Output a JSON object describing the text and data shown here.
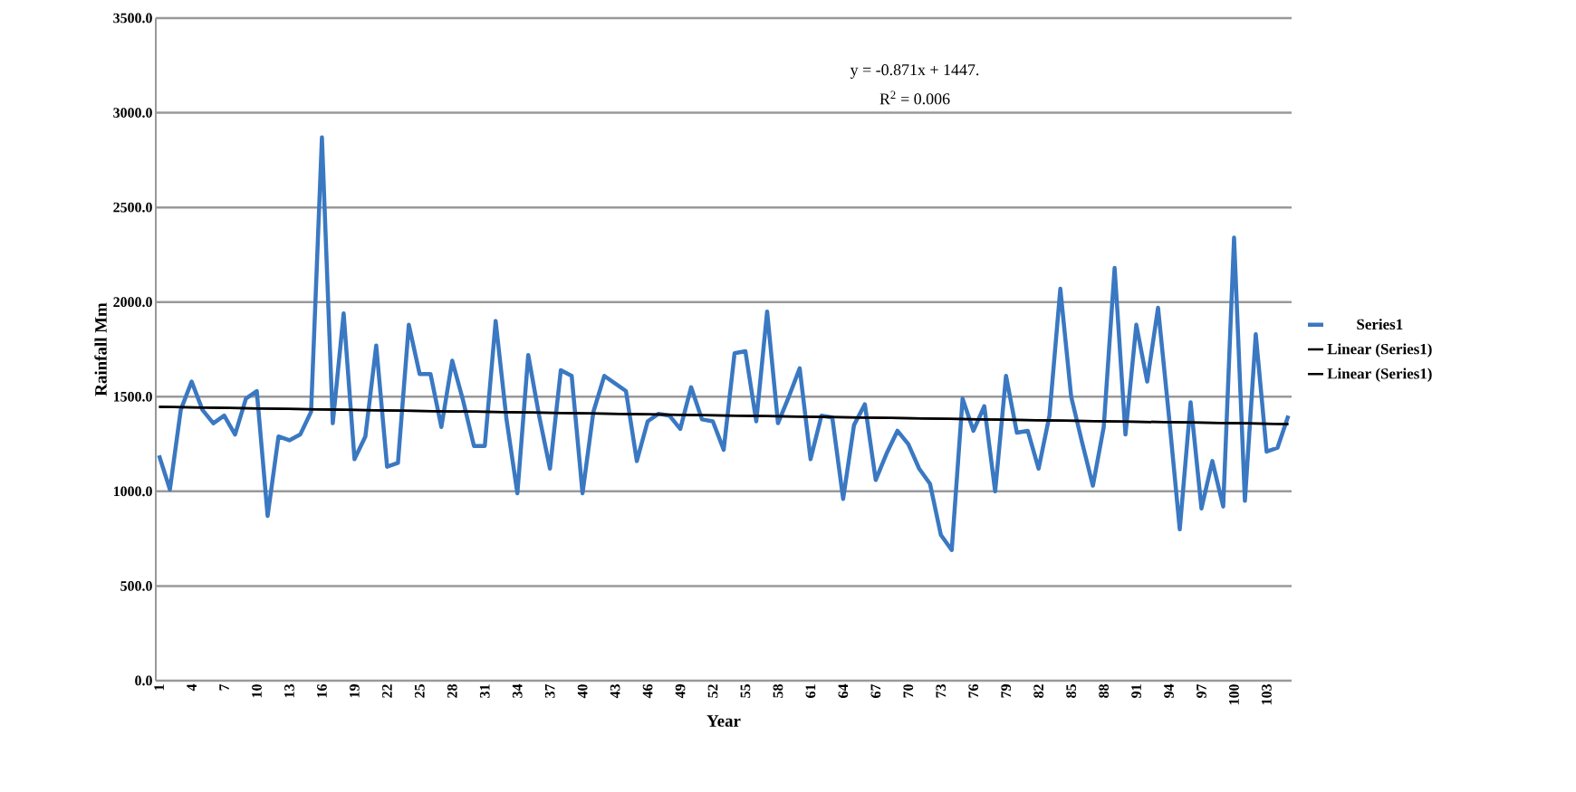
{
  "chart_data": {
    "type": "line",
    "xlabel": "Year",
    "ylabel": "Rainfall Mm",
    "categories": [
      "1",
      null,
      null,
      "4",
      null,
      null,
      "7",
      null,
      null,
      "10",
      null,
      null,
      "13",
      null,
      null,
      "16",
      null,
      null,
      "19",
      null,
      null,
      "22",
      null,
      null,
      "25",
      null,
      null,
      "28",
      null,
      null,
      "31",
      null,
      null,
      "34",
      null,
      null,
      "37",
      null,
      null,
      "40",
      null,
      null,
      "43",
      null,
      null,
      "46",
      null,
      null,
      "49",
      null,
      null,
      "52",
      null,
      null,
      "55",
      null,
      null,
      "58",
      null,
      null,
      "61",
      null,
      null,
      "64",
      null,
      null,
      "67",
      null,
      null,
      "70",
      null,
      null,
      "73",
      null,
      null,
      "76",
      null,
      null,
      "79",
      null,
      null,
      "82",
      null,
      null,
      "85",
      null,
      null,
      "88",
      null,
      null,
      "91",
      null,
      null,
      "94",
      null,
      null,
      "97",
      null,
      null,
      "100",
      null,
      null,
      "103",
      null,
      null
    ],
    "series": [
      {
        "name": "Series1",
        "color": "#3a78c2",
        "values": [
          1190,
          1010,
          1430,
          1580,
          1430,
          1360,
          1400,
          1300,
          1490,
          1530,
          870,
          1290,
          1270,
          1300,
          1420,
          2870,
          1360,
          1940,
          1170,
          1290,
          1770,
          1130,
          1150,
          1880,
          1620,
          1620,
          1340,
          1690,
          1480,
          1240,
          1240,
          1900,
          1380,
          990,
          1720,
          1400,
          1120,
          1640,
          1610,
          990,
          1420,
          1610,
          1570,
          1530,
          1160,
          1370,
          1410,
          1400,
          1330,
          1550,
          1380,
          1370,
          1220,
          1730,
          1740,
          1370,
          1950,
          1360,
          1500,
          1650,
          1170,
          1400,
          1390,
          960,
          1350,
          1460,
          1060,
          1200,
          1320,
          1250,
          1120,
          1040,
          770,
          690,
          1490,
          1320,
          1450,
          1000,
          1610,
          1310,
          1320,
          1120,
          1400,
          2070,
          1500,
          1260,
          1030,
          1340,
          2180,
          1300,
          1880,
          1580,
          1970,
          1400,
          800,
          1470,
          910,
          1160,
          920,
          2340,
          950,
          1830,
          1210,
          1230,
          1400
        ]
      },
      {
        "name": "Linear (Series1)",
        "color": "#000000",
        "values": [
          1446,
          null,
          null,
          null,
          null,
          null,
          null,
          null,
          null,
          null,
          null,
          null,
          null,
          null,
          null,
          null,
          null,
          null,
          null,
          null,
          null,
          null,
          null,
          null,
          null,
          null,
          null,
          null,
          null,
          null,
          null,
          null,
          null,
          null,
          null,
          null,
          null,
          null,
          null,
          null,
          null,
          null,
          null,
          null,
          null,
          null,
          null,
          null,
          null,
          null,
          null,
          null,
          null,
          null,
          null,
          null,
          null,
          null,
          null,
          null,
          null,
          null,
          null,
          null,
          null,
          null,
          null,
          null,
          null,
          null,
          null,
          null,
          null,
          null,
          null,
          null,
          null,
          null,
          null,
          null,
          null,
          null,
          null,
          null,
          null,
          null,
          null,
          null,
          null,
          null,
          null,
          null,
          null,
          null,
          null,
          null,
          null,
          null,
          null,
          null,
          null,
          null,
          null,
          null,
          1356
        ]
      },
      {
        "name": "Linear (Series1)",
        "color": "#000000",
        "values": [
          1446,
          null,
          null,
          null,
          null,
          null,
          null,
          null,
          null,
          null,
          null,
          null,
          null,
          null,
          null,
          null,
          null,
          null,
          null,
          null,
          null,
          null,
          null,
          null,
          null,
          null,
          null,
          null,
          null,
          null,
          null,
          null,
          null,
          null,
          null,
          null,
          null,
          null,
          null,
          null,
          null,
          null,
          null,
          null,
          null,
          null,
          null,
          null,
          null,
          null,
          null,
          null,
          null,
          null,
          null,
          null,
          null,
          null,
          null,
          null,
          null,
          null,
          null,
          null,
          null,
          null,
          null,
          null,
          null,
          null,
          null,
          null,
          null,
          null,
          null,
          null,
          null,
          null,
          null,
          null,
          null,
          null,
          null,
          null,
          null,
          null,
          null,
          null,
          null,
          null,
          null,
          null,
          null,
          null,
          null,
          null,
          null,
          null,
          null,
          null,
          null,
          null,
          null,
          null,
          1356
        ]
      }
    ],
    "ylim": [
      0,
      3500
    ],
    "yticks": [
      {
        "value": 0,
        "label": "0.0"
      },
      {
        "value": 500,
        "label": "500.0"
      },
      {
        "value": 1000,
        "label": "1000.0"
      },
      {
        "value": 1500,
        "label": "1500.0"
      },
      {
        "value": 2000,
        "label": "2000.0"
      },
      {
        "value": 2500,
        "label": "2500.0"
      },
      {
        "value": 3000,
        "label": "3000.0"
      },
      {
        "value": 3500,
        "label": "3500.0"
      }
    ],
    "grid": "y",
    "legend": "right",
    "marker": "none",
    "annotations": [
      "y = -0.871x + 1447.",
      "R$^{2}$ = 0.006"
    ]
  }
}
